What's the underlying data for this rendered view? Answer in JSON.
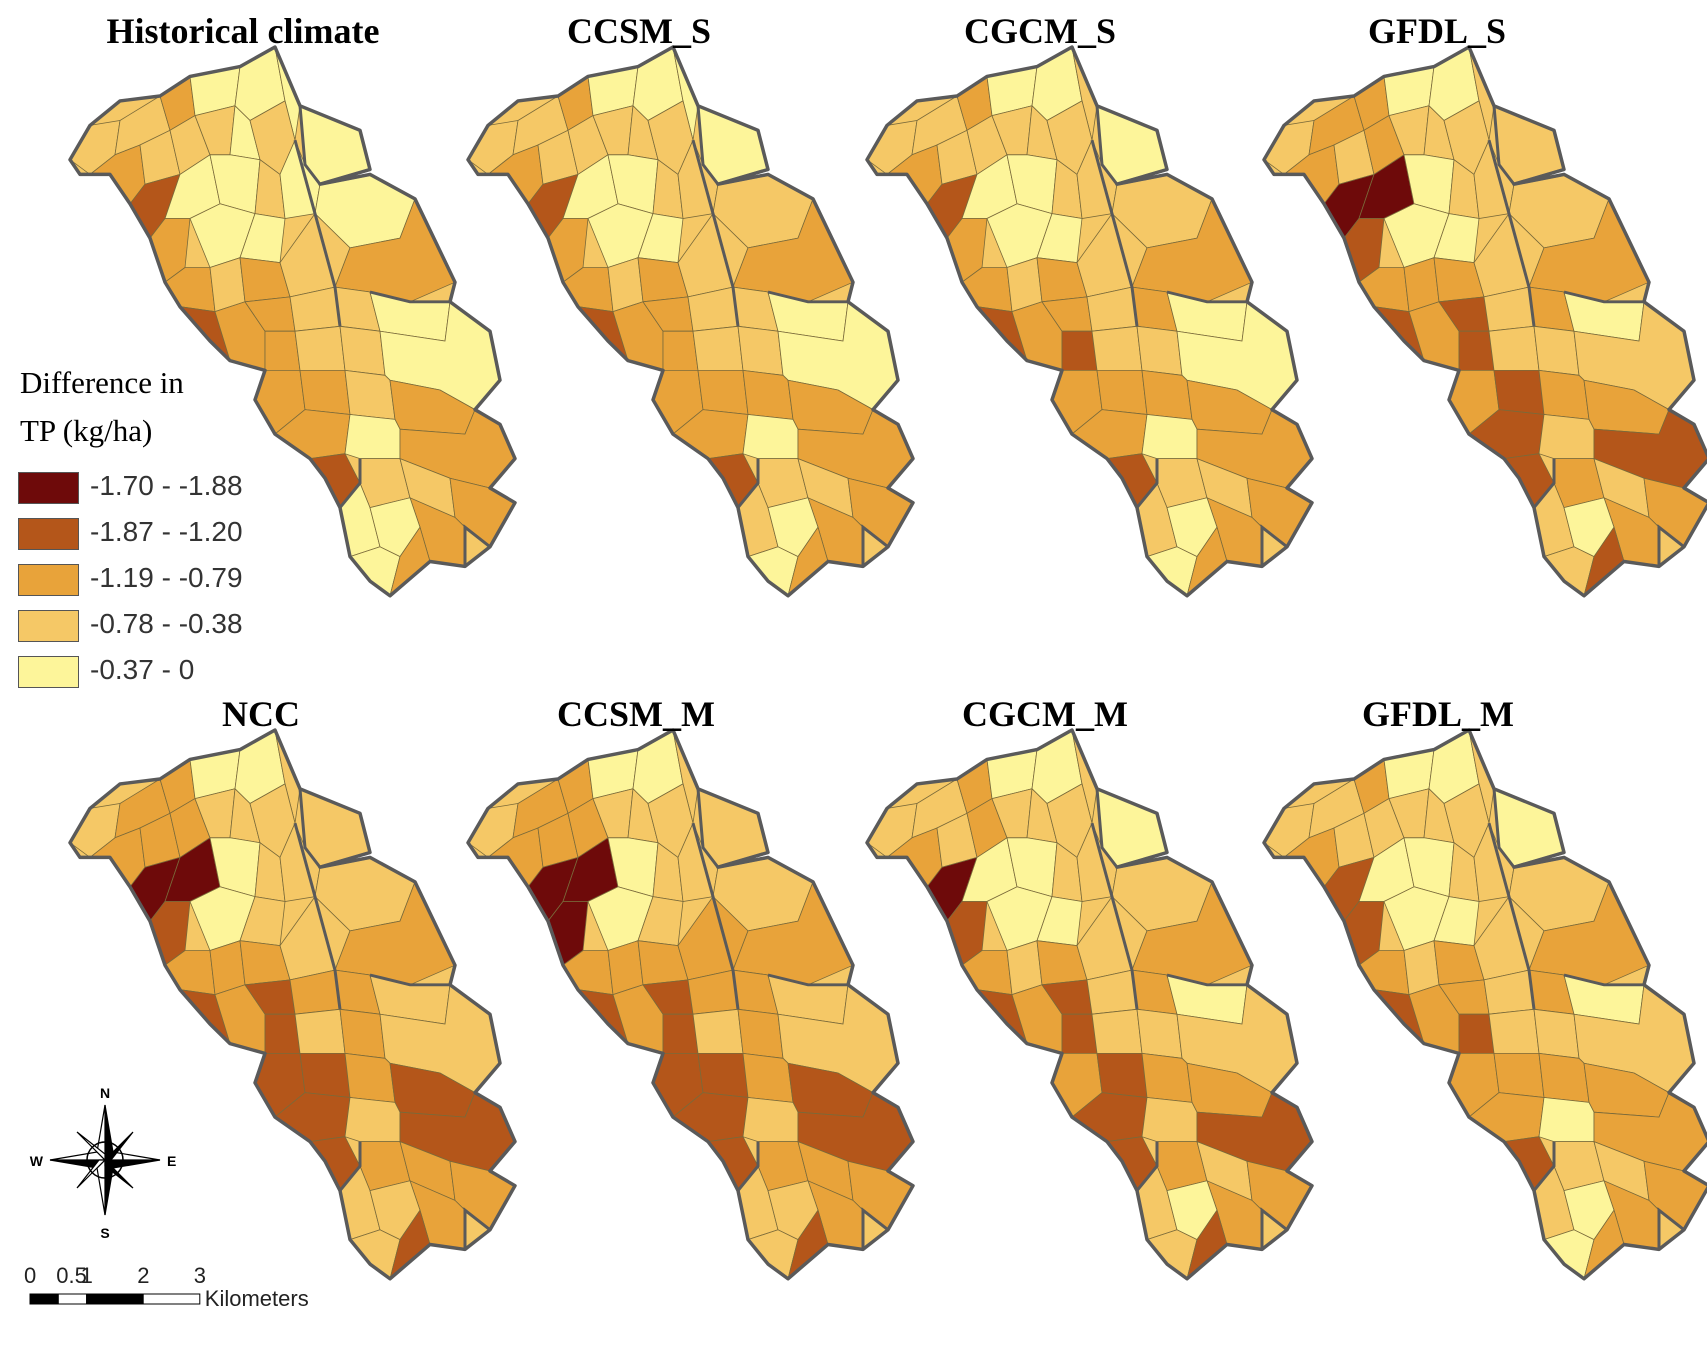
{
  "panels": [
    {
      "title": "Historical climate",
      "fills": [
        3,
        3,
        2,
        4,
        4,
        4,
        2,
        3,
        3,
        1,
        3,
        4,
        4,
        2,
        4,
        4,
        3,
        3,
        2,
        4,
        4,
        4,
        4,
        3,
        2,
        1,
        2,
        3,
        2,
        2,
        3,
        2,
        3,
        4,
        2,
        3,
        3,
        4,
        2,
        3,
        2,
        2,
        1,
        4,
        2,
        3,
        3,
        2,
        2,
        4,
        4,
        4,
        2
      ]
    },
    {
      "title": "CCSM_S",
      "fills": [
        3,
        3,
        2,
        4,
        4,
        4,
        2,
        3,
        3,
        1,
        3,
        4,
        3,
        2,
        4,
        4,
        3,
        3,
        2,
        4,
        3,
        4,
        3,
        3,
        2,
        1,
        2,
        3,
        2,
        2,
        3,
        2,
        3,
        4,
        2,
        3,
        3,
        4,
        2,
        2,
        2,
        2,
        1,
        4,
        2,
        3,
        3,
        2,
        2,
        3,
        4,
        4,
        2
      ]
    },
    {
      "title": "CGCM_S",
      "fills": [
        3,
        3,
        2,
        4,
        4,
        3,
        2,
        3,
        3,
        1,
        3,
        4,
        3,
        2,
        4,
        4,
        3,
        3,
        2,
        4,
        3,
        4,
        3,
        3,
        2,
        1,
        2,
        3,
        2,
        2,
        3,
        1,
        2,
        4,
        2,
        3,
        3,
        4,
        2,
        2,
        2,
        2,
        1,
        4,
        2,
        3,
        3,
        2,
        2,
        3,
        4,
        4,
        2
      ]
    },
    {
      "title": "GFDL_S",
      "fills": [
        3,
        2,
        2,
        4,
        4,
        3,
        2,
        3,
        2,
        0,
        3,
        0,
        3,
        1,
        4,
        4,
        3,
        3,
        2,
        3,
        3,
        4,
        3,
        2,
        2,
        1,
        2,
        3,
        2,
        1,
        3,
        1,
        2,
        4,
        2,
        3,
        3,
        3,
        1,
        2,
        2,
        1,
        1,
        3,
        1,
        2,
        3,
        2,
        2,
        3,
        4,
        3,
        1
      ]
    },
    {
      "title": "NCC",
      "fills": [
        3,
        2,
        2,
        4,
        4,
        3,
        2,
        2,
        2,
        0,
        3,
        0,
        3,
        1,
        4,
        4,
        3,
        3,
        2,
        3,
        3,
        3,
        3,
        2,
        2,
        1,
        2,
        3,
        2,
        1,
        2,
        1,
        2,
        3,
        1,
        3,
        2,
        3,
        1,
        2,
        1,
        1,
        1,
        3,
        1,
        2,
        2,
        2,
        2,
        3,
        3,
        3,
        1
      ]
    },
    {
      "title": "CCSM_M",
      "fills": [
        3,
        2,
        2,
        4,
        4,
        3,
        2,
        2,
        2,
        0,
        3,
        0,
        3,
        0,
        4,
        4,
        3,
        3,
        2,
        3,
        3,
        3,
        3,
        2,
        2,
        1,
        2,
        2,
        2,
        1,
        2,
        1,
        2,
        3,
        1,
        3,
        2,
        3,
        1,
        2,
        1,
        1,
        1,
        3,
        1,
        2,
        2,
        2,
        2,
        3,
        3,
        3,
        1
      ]
    },
    {
      "title": "CGCM_M",
      "fills": [
        3,
        3,
        2,
        4,
        4,
        3,
        2,
        3,
        2,
        0,
        3,
        4,
        3,
        1,
        4,
        4,
        3,
        3,
        2,
        4,
        3,
        4,
        3,
        3,
        2,
        1,
        2,
        3,
        2,
        1,
        3,
        1,
        2,
        4,
        2,
        3,
        3,
        3,
        1,
        2,
        2,
        1,
        1,
        3,
        1,
        2,
        3,
        2,
        2,
        3,
        4,
        3,
        1
      ]
    },
    {
      "title": "GFDL_M",
      "fills": [
        3,
        3,
        2,
        4,
        4,
        3,
        2,
        3,
        3,
        1,
        3,
        4,
        3,
        1,
        4,
        4,
        3,
        3,
        2,
        4,
        3,
        4,
        3,
        3,
        2,
        1,
        2,
        3,
        2,
        2,
        3,
        1,
        2,
        4,
        2,
        3,
        3,
        3,
        2,
        2,
        2,
        2,
        1,
        4,
        2,
        3,
        3,
        2,
        2,
        3,
        4,
        4,
        2
      ]
    }
  ],
  "legend": {
    "title_line1": "Difference in",
    "title_line2": "TP (kg/ha)",
    "classes": [
      {
        "label": "-1.70 - -1.88",
        "color": "#6e0a0a"
      },
      {
        "label": "-1.87 - -1.20",
        "color": "#b4561a"
      },
      {
        "label": "-1.19 - -0.79",
        "color": "#e8a33a"
      },
      {
        "label": "-0.78 - -0.38",
        "color": "#f5c866"
      },
      {
        "label": "-0.37 - 0",
        "color": "#fdf59a"
      }
    ]
  },
  "north_arrow": {
    "n": "N",
    "s": "S",
    "e": "E",
    "w": "W",
    "icon": "compass-rose-icon"
  },
  "scale_bar": {
    "ticks": [
      "0",
      "0.5",
      "1",
      "2",
      "3"
    ],
    "unit": "Kilometers"
  },
  "colors": {
    "outline": "#5a5a5a",
    "subbasin_line": "#7a6a3a"
  }
}
